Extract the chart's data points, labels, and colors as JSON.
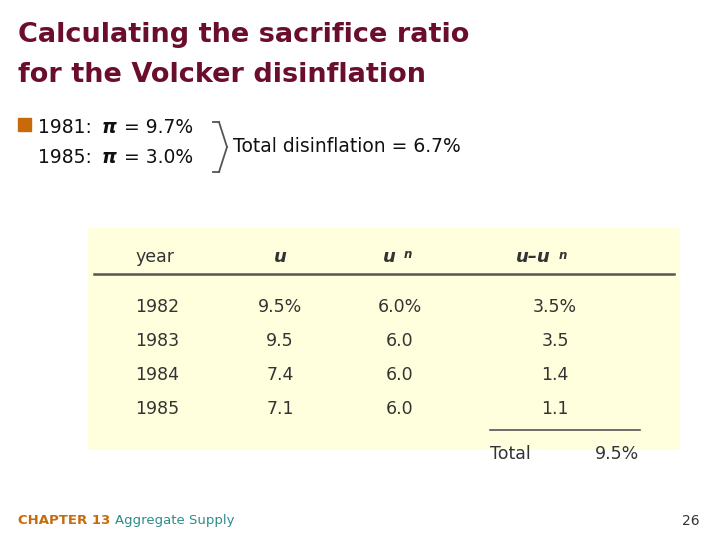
{
  "title_line1": "Calculating the sacrifice ratio",
  "title_line2": "for the Volcker disinflation",
  "title_color": "#6B0E2E",
  "bg_color": "#FFFFFF",
  "table_bg_color": "#FFFFDD",
  "bullet_color": "#C8690A",
  "brace_text": "Total disinflation = 6.7%",
  "col_headers": [
    "year",
    "u",
    "un",
    "u–un"
  ],
  "rows": [
    [
      "1982",
      "9.5%",
      "6.0%",
      "3.5%"
    ],
    [
      "1983",
      "9.5",
      "6.0",
      "3.5"
    ],
    [
      "1984",
      "7.4",
      "6.0",
      "1.4"
    ],
    [
      "1985",
      "7.1",
      "6.0",
      "1.1"
    ]
  ],
  "total_label": "Total",
  "total_value": "9.5%",
  "footer_chapter": "CHAPTER 13",
  "footer_title": "Aggregate Supply",
  "footer_page": "26",
  "footer_chapter_color": "#C8690A",
  "footer_title_color": "#2E8B8B",
  "table_text_color": "#333333",
  "header_text_color": "#333333",
  "line_color": "#555555"
}
